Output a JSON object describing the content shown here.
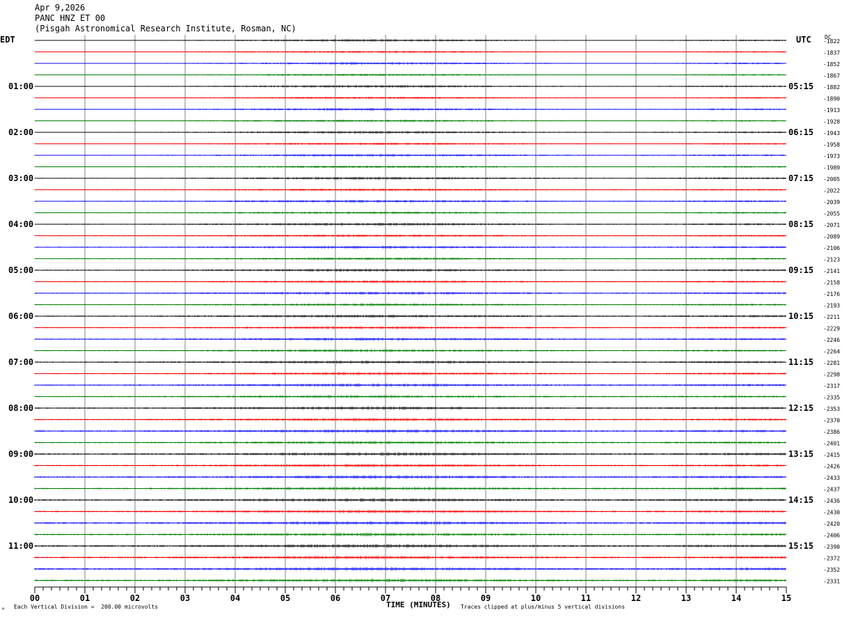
{
  "header": {
    "date": "Apr 9,2026",
    "station": "PANC HNZ ET 00",
    "location": "(Pisgah Astronomical Research Institute, Rosman, NC)"
  },
  "left_tz": "EDT",
  "right_tz": "UTC",
  "dc_label": "DC",
  "xlabel": "TIME (MINUTES)",
  "footer": {
    "scale_note": "Each Vertical Division =  200.00 microvolts",
    "clip_note": "Traces clipped at plus/minus 5 vertical divisions",
    "corner_mark": "ᴺ"
  },
  "colors": {
    "trace_cycle": [
      "#000000",
      "#ff0000",
      "#0000ff",
      "#008000"
    ],
    "grid": "#808080"
  },
  "chart_data": {
    "type": "line",
    "title": "PANC HNZ ET 00",
    "xlabel": "TIME (MINUTES)",
    "ylabel": "",
    "xlim": [
      0,
      15
    ],
    "x_ticks": [
      "00",
      "01",
      "02",
      "03",
      "04",
      "05",
      "06",
      "07",
      "08",
      "09",
      "10",
      "11",
      "12",
      "13",
      "14",
      "15"
    ],
    "left_hour_labels": [
      "01:00",
      "02:00",
      "03:00",
      "04:00",
      "05:00",
      "06:00",
      "07:00",
      "08:00",
      "09:00",
      "10:00",
      "11:00"
    ],
    "right_hour_labels": [
      "05:15",
      "06:15",
      "07:15",
      "08:15",
      "09:15",
      "10:15",
      "11:15",
      "12:15",
      "13:15",
      "14:15",
      "15:15"
    ],
    "trace_count": 48,
    "trace_minutes": 15,
    "dc_offsets": [
      "-1822",
      "-1837",
      "-1852",
      "-1867",
      "-1882",
      "-1890",
      "-1913",
      "-1928",
      "-1943",
      "-1958",
      "-1973",
      "-1989",
      "-2005",
      "-2022",
      "-2039",
      "-2055",
      "-2071",
      "-2089",
      "-2106",
      "-2123",
      "-2141",
      "-2158",
      "-2176",
      "-2193",
      "-2211",
      "-2229",
      "-2246",
      "-2264",
      "-2281",
      "-2298",
      "-2317",
      "-2335",
      "-2353",
      "-2370",
      "-2386",
      "-2401",
      "-2415",
      "-2426",
      "-2433",
      "-2437",
      "-2436",
      "-2430",
      "-2420",
      "-2406",
      "-2390",
      "-2372",
      "-2352",
      "-2331"
    ],
    "grid": true
  }
}
